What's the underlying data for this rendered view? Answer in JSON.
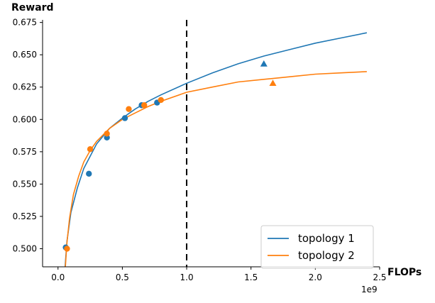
{
  "chart_data": {
    "type": "scatter",
    "title": "",
    "xlabel": "FLOPs",
    "ylabel": "Reward",
    "x_offset_label": "1e9",
    "xlim": [
      -120000000.0,
      2500000000.0
    ],
    "ylim": [
      0.486,
      0.677
    ],
    "xticks": [
      {
        "value": 0.0,
        "label": "0.0"
      },
      {
        "value": 500000000.0,
        "label": "0.5"
      },
      {
        "value": 1000000000.0,
        "label": "1.0"
      },
      {
        "value": 1500000000.0,
        "label": "1.5"
      },
      {
        "value": 2000000000.0,
        "label": "2.0"
      },
      {
        "value": 2500000000.0,
        "label": "2.5"
      }
    ],
    "yticks": [
      {
        "value": 0.5,
        "label": "0.500"
      },
      {
        "value": 0.525,
        "label": "0.525"
      },
      {
        "value": 0.55,
        "label": "0.550"
      },
      {
        "value": 0.575,
        "label": "0.575"
      },
      {
        "value": 0.6,
        "label": "0.600"
      },
      {
        "value": 0.625,
        "label": "0.625"
      },
      {
        "value": 0.65,
        "label": "0.650"
      },
      {
        "value": 0.675,
        "label": "0.675"
      }
    ],
    "reference_line": {
      "x": 1000000000.0,
      "style": "dashed",
      "color": "#000000"
    },
    "legend_position": "lower right",
    "series": [
      {
        "name": "topology 1",
        "color": "#1f77b4",
        "points": [
          {
            "x": 60000000.0,
            "y": 0.501
          },
          {
            "x": 240000000.0,
            "y": 0.558
          },
          {
            "x": 380000000.0,
            "y": 0.586
          },
          {
            "x": 520000000.0,
            "y": 0.601
          },
          {
            "x": 650000000.0,
            "y": 0.611
          },
          {
            "x": 770000000.0,
            "y": 0.613
          }
        ],
        "extra_point": {
          "x": 1600000000.0,
          "y": 0.643,
          "marker": "triangle"
        },
        "fit_curve": [
          {
            "x": 55000000.0,
            "y": 0.486
          },
          {
            "x": 70000000.0,
            "y": 0.506
          },
          {
            "x": 100000000.0,
            "y": 0.528
          },
          {
            "x": 150000000.0,
            "y": 0.547
          },
          {
            "x": 200000000.0,
            "y": 0.562
          },
          {
            "x": 300000000.0,
            "y": 0.581
          },
          {
            "x": 400000000.0,
            "y": 0.593
          },
          {
            "x": 500000000.0,
            "y": 0.601
          },
          {
            "x": 600000000.0,
            "y": 0.608
          },
          {
            "x": 700000000.0,
            "y": 0.614
          },
          {
            "x": 800000000.0,
            "y": 0.619
          },
          {
            "x": 1000000000.0,
            "y": 0.628
          },
          {
            "x": 1200000000.0,
            "y": 0.636
          },
          {
            "x": 1400000000.0,
            "y": 0.643
          },
          {
            "x": 1600000000.0,
            "y": 0.649
          },
          {
            "x": 1800000000.0,
            "y": 0.654
          },
          {
            "x": 2000000000.0,
            "y": 0.659
          },
          {
            "x": 2200000000.0,
            "y": 0.663
          },
          {
            "x": 2400000000.0,
            "y": 0.667
          }
        ]
      },
      {
        "name": "topology 2",
        "color": "#ff7f0e",
        "points": [
          {
            "x": 70000000.0,
            "y": 0.5
          },
          {
            "x": 250000000.0,
            "y": 0.577
          },
          {
            "x": 380000000.0,
            "y": 0.589
          },
          {
            "x": 550000000.0,
            "y": 0.608
          },
          {
            "x": 670000000.0,
            "y": 0.611
          },
          {
            "x": 800000000.0,
            "y": 0.615
          }
        ],
        "extra_point": {
          "x": 1670000000.0,
          "y": 0.628,
          "marker": "triangle"
        },
        "fit_curve": [
          {
            "x": 57000000.0,
            "y": 0.486
          },
          {
            "x": 70000000.0,
            "y": 0.505
          },
          {
            "x": 90000000.0,
            "y": 0.524
          },
          {
            "x": 120000000.0,
            "y": 0.542
          },
          {
            "x": 160000000.0,
            "y": 0.556
          },
          {
            "x": 200000000.0,
            "y": 0.567
          },
          {
            "x": 250000000.0,
            "y": 0.576
          },
          {
            "x": 300000000.0,
            "y": 0.583
          },
          {
            "x": 400000000.0,
            "y": 0.593
          },
          {
            "x": 500000000.0,
            "y": 0.6
          },
          {
            "x": 600000000.0,
            "y": 0.605
          },
          {
            "x": 700000000.0,
            "y": 0.61
          },
          {
            "x": 800000000.0,
            "y": 0.614
          },
          {
            "x": 1000000000.0,
            "y": 0.621
          },
          {
            "x": 1200000000.0,
            "y": 0.625
          },
          {
            "x": 1400000000.0,
            "y": 0.629
          },
          {
            "x": 1600000000.0,
            "y": 0.631
          },
          {
            "x": 1800000000.0,
            "y": 0.633
          },
          {
            "x": 2000000000.0,
            "y": 0.635
          },
          {
            "x": 2200000000.0,
            "y": 0.636
          },
          {
            "x": 2400000000.0,
            "y": 0.637
          }
        ]
      }
    ]
  }
}
